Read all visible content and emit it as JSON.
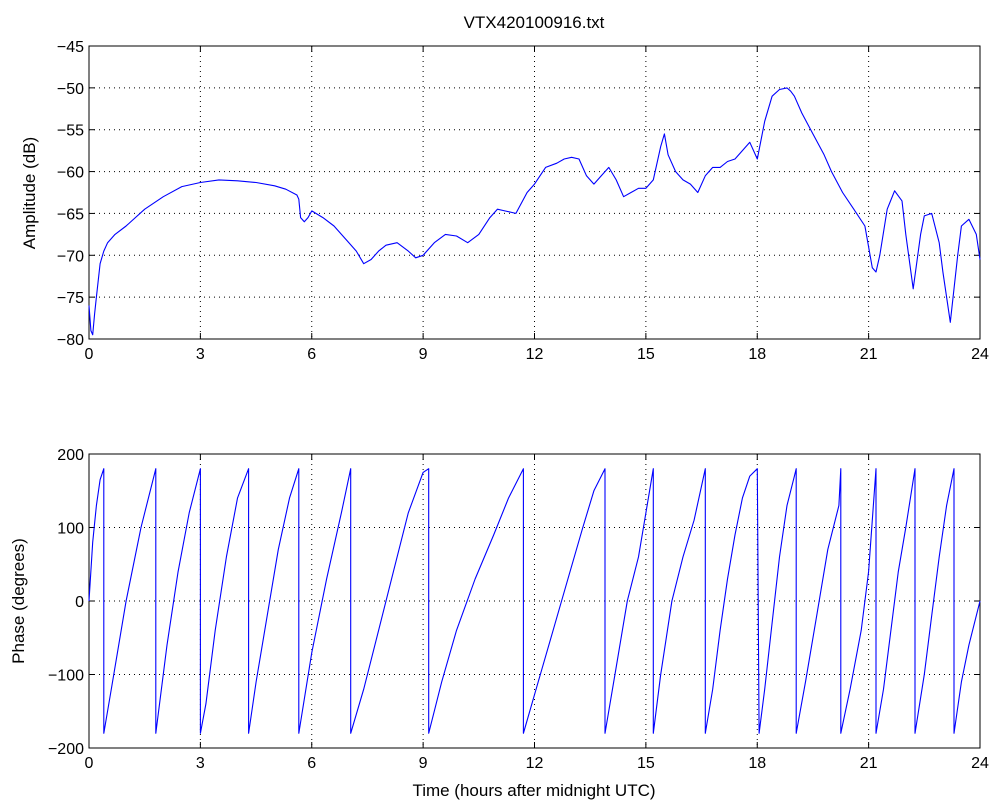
{
  "chart_data": [
    {
      "type": "line",
      "title": "VTX420100916.txt",
      "xlabel": "",
      "ylabel": "Amplitude (dB)",
      "xlim": [
        0,
        24
      ],
      "ylim": [
        -80,
        -45
      ],
      "xticks": [
        0,
        3,
        6,
        9,
        12,
        15,
        18,
        21,
        24
      ],
      "yticks": [
        -80,
        -75,
        -70,
        -65,
        -60,
        -55,
        -50,
        -45
      ],
      "xtick_labels": [
        "0",
        "3",
        "6",
        "9",
        "12",
        "15",
        "18",
        "21",
        "24"
      ],
      "ytick_labels": [
        "−80",
        "−75",
        "−70",
        "−65",
        "−60",
        "−55",
        "−50",
        "−45"
      ],
      "grid": true,
      "color": "#0000ff",
      "series": [
        {
          "x": [
            0,
            0.05,
            0.1,
            0.15,
            0.2,
            0.3,
            0.4,
            0.5,
            0.7,
            1.0,
            1.5,
            2.0,
            2.5,
            3.0,
            3.5,
            4.0,
            4.5,
            5.0,
            5.3,
            5.6,
            5.65,
            5.7,
            5.8,
            5.9,
            6.0,
            6.3,
            6.6,
            7.0,
            7.2,
            7.4,
            7.6,
            7.8,
            8.0,
            8.3,
            8.6,
            8.8,
            9.0,
            9.3,
            9.6,
            9.9,
            10.2,
            10.5,
            10.8,
            11.0,
            11.2,
            11.5,
            11.8,
            12.0,
            12.3,
            12.6,
            12.8,
            13.0,
            13.2,
            13.4,
            13.6,
            13.8,
            14.0,
            14.2,
            14.4,
            14.6,
            14.8,
            15.0,
            15.2,
            15.4,
            15.5,
            15.6,
            15.8,
            16.0,
            16.2,
            16.4,
            16.6,
            16.8,
            17.0,
            17.2,
            17.4,
            17.6,
            17.8,
            18.0,
            18.2,
            18.4,
            18.6,
            18.8,
            18.9,
            19.0,
            19.2,
            19.5,
            19.8,
            20.0,
            20.3,
            20.6,
            20.9,
            21.0,
            21.1,
            21.2,
            21.3,
            21.5,
            21.7,
            21.9,
            22.0,
            22.2,
            22.4,
            22.5,
            22.7,
            22.9,
            23.0,
            23.2,
            23.4,
            23.5,
            23.7,
            23.9,
            24.0
          ],
          "y": [
            -76,
            -79,
            -79.5,
            -77,
            -75,
            -71,
            -69.5,
            -68.5,
            -67.5,
            -66.5,
            -64.5,
            -63,
            -61.8,
            -61.3,
            -61,
            -61.1,
            -61.3,
            -61.7,
            -62.1,
            -62.8,
            -63.3,
            -65.5,
            -66,
            -65.5,
            -64.7,
            -65.5,
            -66.5,
            -68.5,
            -69.5,
            -71,
            -70.5,
            -69.5,
            -68.8,
            -68.5,
            -69.5,
            -70.3,
            -70,
            -68.5,
            -67.5,
            -67.7,
            -68.5,
            -67.5,
            -65.5,
            -64.5,
            -64.7,
            -65,
            -62.5,
            -61.5,
            -59.5,
            -59,
            -58.5,
            -58.3,
            -58.5,
            -60.5,
            -61.5,
            -60.5,
            -59.5,
            -61,
            -63,
            -62.5,
            -62,
            -62,
            -61,
            -57,
            -55.5,
            -58,
            -60,
            -61,
            -61.5,
            -62.5,
            -60.5,
            -59.5,
            -59.5,
            -58.8,
            -58.5,
            -57.5,
            -56.5,
            -58.5,
            -54,
            -51,
            -50.2,
            -50,
            -50.4,
            -51,
            -53,
            -55.5,
            -58,
            -60,
            -62.5,
            -64.5,
            -66.5,
            -69,
            -71.5,
            -72,
            -70,
            -64.5,
            -62.3,
            -63.5,
            -67.5,
            -74,
            -67.5,
            -65.3,
            -65,
            -68.5,
            -72,
            -78,
            -70,
            -66.5,
            -65.7,
            -67.5,
            -70.5
          ]
        }
      ]
    },
    {
      "type": "line",
      "title": "",
      "xlabel": "Time (hours after midnight UTC)",
      "ylabel": "Phase (degrees)",
      "xlim": [
        0,
        24
      ],
      "ylim": [
        -200,
        200
      ],
      "xticks": [
        0,
        3,
        6,
        9,
        12,
        15,
        18,
        21,
        24
      ],
      "yticks": [
        -200,
        -100,
        0,
        100,
        200
      ],
      "xtick_labels": [
        "0",
        "3",
        "6",
        "9",
        "12",
        "15",
        "18",
        "21",
        "24"
      ],
      "ytick_labels": [
        "−200",
        "−100",
        "0",
        "100",
        "200"
      ],
      "grid": true,
      "color": "#0000ff",
      "series": [
        {
          "x": [
            0,
            0.1,
            0.2,
            0.3,
            0.4,
            0.4,
            0.6,
            1.0,
            1.4,
            1.8,
            1.8,
            2.1,
            2.4,
            2.7,
            3.0,
            3.0,
            3.15,
            3.4,
            3.7,
            4.0,
            4.3,
            4.3,
            4.5,
            4.8,
            5.1,
            5.4,
            5.65,
            5.65,
            6.0,
            6.4,
            6.8,
            7.05,
            7.05,
            7.4,
            7.8,
            8.2,
            8.6,
            9.0,
            9.15,
            9.15,
            9.5,
            9.9,
            10.4,
            10.9,
            11.3,
            11.7,
            11.7,
            12.1,
            12.5,
            12.9,
            13.3,
            13.6,
            13.9,
            13.9,
            14.2,
            14.5,
            14.8,
            15.0,
            15.2,
            15.2,
            15.4,
            15.7,
            16.0,
            16.3,
            16.6,
            16.6,
            16.8,
            17.0,
            17.2,
            17.4,
            17.6,
            17.8,
            18.0,
            18.05,
            18.05,
            18.2,
            18.4,
            18.6,
            18.8,
            19.0,
            19.05,
            19.05,
            19.3,
            19.6,
            19.9,
            20.2,
            20.25,
            20.25,
            20.5,
            20.8,
            21.0,
            21.2,
            21.2,
            21.4,
            21.6,
            21.8,
            22.0,
            22.25,
            22.25,
            22.5,
            22.7,
            22.9,
            23.1,
            23.3,
            23.3,
            23.5,
            23.7,
            24.0
          ],
          "y": [
            0,
            80,
            130,
            165,
            180,
            -180,
            -120,
            0,
            100,
            180,
            -180,
            -60,
            40,
            120,
            180,
            -180,
            -140,
            -40,
            60,
            140,
            180,
            -180,
            -110,
            -20,
            70,
            140,
            180,
            -180,
            -70,
            30,
            120,
            180,
            -180,
            -120,
            -40,
            40,
            120,
            175,
            180,
            -180,
            -110,
            -40,
            30,
            90,
            140,
            180,
            -180,
            -110,
            -40,
            30,
            100,
            150,
            180,
            -180,
            -90,
            0,
            60,
            120,
            180,
            -180,
            -100,
            0,
            60,
            110,
            180,
            -180,
            -120,
            -40,
            30,
            90,
            140,
            170,
            180,
            -180,
            -180,
            -120,
            -30,
            60,
            130,
            170,
            180,
            -180,
            -110,
            -20,
            70,
            130,
            180,
            -180,
            -120,
            -40,
            40,
            180,
            -180,
            -120,
            -40,
            40,
            100,
            180,
            -180,
            -100,
            -20,
            60,
            130,
            180,
            -180,
            -110,
            -60,
            0
          ]
        }
      ]
    }
  ]
}
